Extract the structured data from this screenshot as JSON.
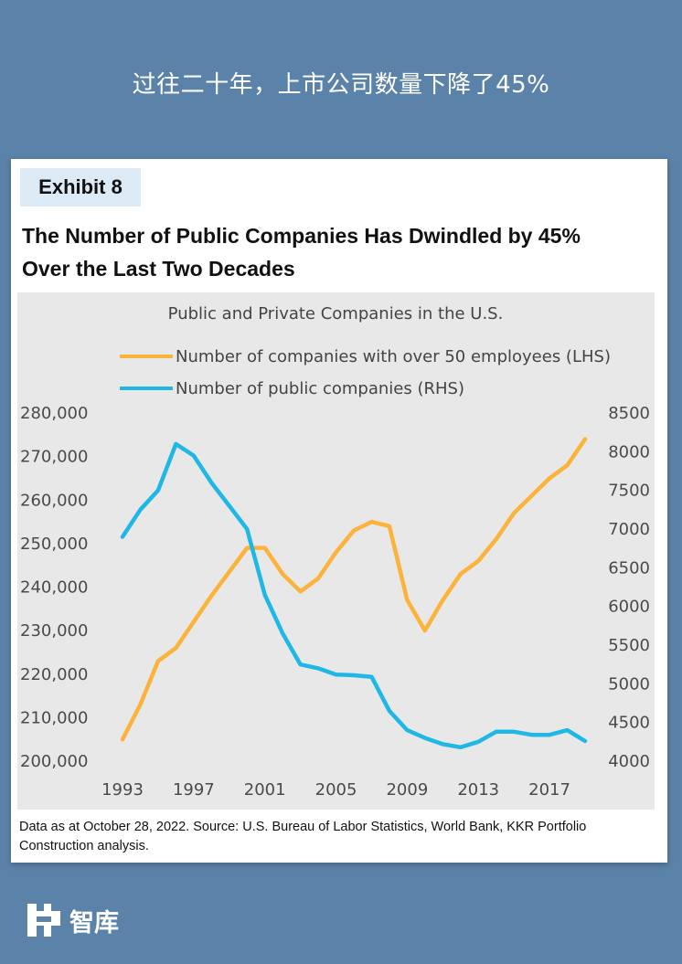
{
  "headline": "过往二十年，上市公司数量下降了45%",
  "exhibit_label": "Exhibit 8",
  "title_line1": "The Number of Public Companies Has Dwindled by 45%",
  "title_line2": "Over the Last Two Decades",
  "source": "Data as at October 28, 2022. Source: U.S. Bureau of Labor Statistics, World Bank, KKR Portfolio Construction analysis.",
  "logo_text": "智库",
  "colors": {
    "background": "#5b82a8",
    "lhs_series": "#fbb33b",
    "rhs_series": "#1fb8e6",
    "plot_bg": "#e8e8e8"
  },
  "chart_data": {
    "type": "line",
    "title": "Public and Private Companies in the U.S.",
    "legend_placement": "top-left",
    "grid": false,
    "x": [
      1993,
      1994,
      1995,
      1996,
      1997,
      1998,
      1999,
      2000,
      2001,
      2002,
      2003,
      2004,
      2005,
      2006,
      2007,
      2008,
      2009,
      2010,
      2011,
      2012,
      2013,
      2014,
      2015,
      2016,
      2017,
      2018,
      2019
    ],
    "x_ticks": [
      "1993",
      "1997",
      "2001",
      "2005",
      "2009",
      "2013",
      "2017"
    ],
    "y_left_ticks": [
      "200,000",
      "210,000",
      "220,000",
      "230,000",
      "240,000",
      "250,000",
      "260,000",
      "270,000",
      "280,000"
    ],
    "y_right_ticks": [
      "4000",
      "4500",
      "5000",
      "5500",
      "6000",
      "6500",
      "7000",
      "7500",
      "8000",
      "8500"
    ],
    "y_left_range": [
      200000,
      280000
    ],
    "y_right_range": [
      4000,
      8500
    ],
    "series": [
      {
        "name": "Number of companies with over 50 employees (LHS)",
        "axis": "left",
        "values": [
          205000,
          213000,
          223000,
          226000,
          232000,
          238000,
          243500,
          249000,
          249000,
          243000,
          239000,
          242000,
          248000,
          253000,
          255000,
          254000,
          237000,
          230000,
          237000,
          243000,
          246000,
          251000,
          257000,
          261000,
          265000,
          268000,
          274000
        ]
      },
      {
        "name": "Number of public companies (RHS)",
        "axis": "right",
        "values": [
          6900,
          7250,
          7500,
          8100,
          7950,
          7600,
          7300,
          7000,
          6150,
          5650,
          5250,
          5200,
          5120,
          5110,
          5090,
          4650,
          4400,
          4300,
          4220,
          4180,
          4250,
          4380,
          4380,
          4340,
          4340,
          4400,
          4260
        ]
      }
    ]
  }
}
